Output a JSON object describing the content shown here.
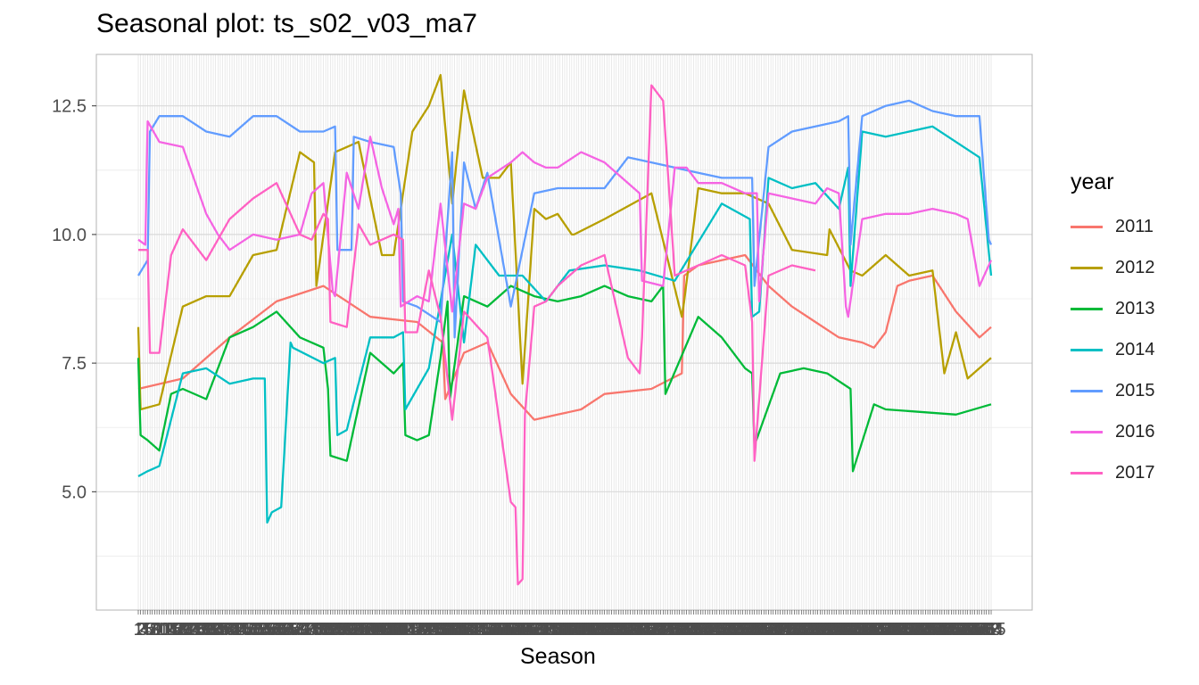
{
  "chart_data": {
    "type": "line",
    "title": "Seasonal plot: ts_s02_v03_ma7",
    "xlabel": "Season",
    "ylabel": "",
    "ylim": [
      2.7,
      13.5
    ],
    "y_ticks": [
      "5.0",
      "7.5",
      "10.0",
      "12.5"
    ],
    "y_tick_values": [
      5.0,
      7.5,
      10.0,
      12.5
    ],
    "x_range": [
      1,
      365
    ],
    "legend_title": "year",
    "legend_position": "right",
    "grid": true,
    "series": [
      {
        "name": "2011",
        "color": "#F8766D",
        "x": [
          1,
          20,
          40,
          60,
          80,
          100,
          120,
          131,
          132,
          140,
          150,
          160,
          170,
          180,
          190,
          200,
          220,
          233,
          234,
          240,
          250,
          260,
          270,
          280,
          290,
          300,
          310,
          315,
          320,
          325,
          330,
          340,
          350,
          360,
          365
        ],
        "values": [
          7.0,
          7.2,
          8.0,
          8.7,
          9.0,
          8.4,
          8.3,
          7.9,
          6.8,
          7.7,
          7.9,
          6.9,
          6.4,
          6.5,
          6.6,
          6.9,
          7.0,
          7.3,
          9.2,
          9.4,
          9.5,
          9.6,
          9.0,
          8.6,
          8.3,
          8.0,
          7.9,
          7.8,
          8.1,
          9.0,
          9.1,
          9.2,
          8.5,
          8.0,
          8.2
        ]
      },
      {
        "name": "2012",
        "color": "#B79F00",
        "x": [
          1,
          2,
          10,
          20,
          30,
          40,
          50,
          60,
          70,
          76,
          77,
          85,
          95,
          105,
          110,
          118,
          125,
          130,
          135,
          140,
          148,
          155,
          160,
          165,
          170,
          175,
          180,
          186,
          187,
          200,
          220,
          233,
          234,
          240,
          250,
          260,
          270,
          280,
          295,
          296,
          305,
          310,
          320,
          330,
          340,
          345,
          350,
          355,
          365
        ],
        "values": [
          8.2,
          6.6,
          6.7,
          8.6,
          8.8,
          8.8,
          9.6,
          9.7,
          11.6,
          11.4,
          9.0,
          11.6,
          11.8,
          9.6,
          9.6,
          12.0,
          12.5,
          13.1,
          10.6,
          12.8,
          11.1,
          11.1,
          11.4,
          7.1,
          10.5,
          10.3,
          10.4,
          10.0,
          10.0,
          10.3,
          10.8,
          8.4,
          8.7,
          10.9,
          10.8,
          10.8,
          10.6,
          9.7,
          9.6,
          10.1,
          9.3,
          9.2,
          9.6,
          9.2,
          9.3,
          7.3,
          8.1,
          7.2,
          7.6
        ]
      },
      {
        "name": "2013",
        "color": "#00BA38",
        "x": [
          1,
          2,
          5,
          10,
          15,
          20,
          30,
          40,
          50,
          60,
          70,
          80,
          82,
          83,
          90,
          100,
          110,
          114,
          115,
          120,
          125,
          130,
          133,
          134,
          140,
          150,
          160,
          170,
          180,
          190,
          200,
          210,
          220,
          225,
          226,
          240,
          250,
          260,
          263,
          264,
          275,
          285,
          295,
          305,
          306,
          315,
          320,
          350,
          365
        ],
        "values": [
          7.6,
          6.1,
          6.0,
          5.8,
          6.9,
          7.0,
          6.8,
          8.0,
          8.2,
          8.5,
          8.0,
          7.8,
          7.0,
          5.7,
          5.6,
          7.7,
          7.3,
          7.5,
          6.1,
          6.0,
          6.1,
          7.6,
          8.7,
          6.8,
          8.8,
          8.6,
          9.0,
          8.8,
          8.7,
          8.8,
          9.0,
          8.8,
          8.7,
          9.0,
          6.9,
          8.4,
          8.0,
          7.4,
          7.3,
          5.9,
          7.3,
          7.4,
          7.3,
          7.0,
          5.4,
          6.7,
          6.6,
          6.5,
          6.7
        ]
      },
      {
        "name": "2014",
        "color": "#00BFC4",
        "x": [
          1,
          5,
          10,
          20,
          30,
          40,
          50,
          55,
          56,
          58,
          62,
          66,
          67,
          80,
          85,
          86,
          90,
          100,
          110,
          114,
          115,
          125,
          135,
          140,
          145,
          155,
          165,
          175,
          185,
          200,
          215,
          230,
          250,
          262,
          263,
          266,
          270,
          280,
          290,
          300,
          304,
          305,
          310,
          320,
          340,
          360,
          365
        ],
        "values": [
          5.3,
          5.4,
          5.5,
          7.3,
          7.4,
          7.1,
          7.2,
          7.2,
          4.4,
          4.6,
          4.7,
          7.9,
          7.8,
          7.5,
          7.6,
          6.1,
          6.2,
          8.0,
          8.0,
          8.1,
          6.6,
          7.4,
          10.0,
          7.9,
          9.8,
          9.2,
          9.2,
          8.7,
          9.3,
          9.4,
          9.3,
          9.1,
          10.6,
          10.3,
          8.4,
          8.5,
          11.1,
          10.9,
          11.0,
          10.5,
          11.3,
          9.0,
          12.0,
          11.9,
          12.1,
          11.5,
          9.2
        ]
      },
      {
        "name": "2015",
        "color": "#619CFF",
        "x": [
          1,
          5,
          6,
          10,
          20,
          30,
          40,
          50,
          60,
          70,
          80,
          85,
          86,
          92,
          93,
          100,
          110,
          113,
          114,
          120,
          130,
          135,
          136,
          140,
          145,
          150,
          160,
          170,
          180,
          190,
          200,
          210,
          220,
          230,
          240,
          250,
          263,
          264,
          270,
          280,
          290,
          300,
          304,
          305,
          310,
          320,
          330,
          340,
          350,
          360,
          364,
          365
        ],
        "values": [
          9.2,
          9.5,
          12.0,
          12.3,
          12.3,
          12.0,
          11.9,
          12.3,
          12.3,
          12.0,
          12.0,
          12.1,
          9.7,
          9.7,
          11.9,
          11.8,
          11.7,
          10.8,
          8.7,
          8.6,
          8.3,
          11.6,
          8.0,
          11.4,
          10.5,
          11.2,
          8.6,
          10.8,
          10.9,
          10.9,
          10.9,
          11.5,
          11.4,
          11.3,
          11.2,
          11.1,
          11.1,
          9.0,
          11.7,
          12.0,
          12.1,
          12.2,
          12.3,
          9.8,
          12.3,
          12.5,
          12.6,
          12.4,
          12.3,
          12.3,
          9.9,
          9.8
        ]
      },
      {
        "name": "2016",
        "color": "#F564E3",
        "x": [
          1,
          4,
          5,
          10,
          20,
          30,
          35,
          40,
          50,
          60,
          70,
          75,
          80,
          84,
          85,
          90,
          95,
          100,
          105,
          110,
          112,
          113,
          120,
          125,
          130,
          135,
          140,
          145,
          150,
          160,
          165,
          170,
          175,
          180,
          190,
          200,
          210,
          215,
          216,
          225,
          230,
          235,
          240,
          250,
          260,
          265,
          266,
          270,
          280,
          290,
          295,
          300,
          303,
          304,
          310,
          320,
          330,
          340,
          350,
          355,
          360,
          365
        ],
        "values": [
          9.9,
          9.8,
          12.2,
          11.8,
          11.7,
          10.4,
          10.0,
          9.7,
          10.0,
          9.9,
          10.0,
          10.8,
          11.0,
          8.9,
          8.8,
          11.2,
          10.5,
          11.9,
          10.9,
          10.2,
          10.5,
          8.6,
          8.8,
          8.7,
          10.6,
          8.5,
          10.6,
          10.5,
          11.1,
          11.4,
          11.6,
          11.4,
          11.3,
          11.3,
          11.6,
          11.4,
          11.0,
          10.8,
          9.1,
          9.0,
          11.3,
          11.3,
          11.0,
          11.0,
          10.8,
          10.8,
          8.7,
          10.8,
          10.7,
          10.6,
          10.9,
          10.8,
          8.6,
          8.4,
          10.3,
          10.4,
          10.4,
          10.5,
          10.4,
          10.3,
          9.0,
          9.5
        ]
      },
      {
        "name": "2017",
        "color": "#FF61C3",
        "x": [
          1,
          5,
          6,
          10,
          15,
          20,
          30,
          40,
          50,
          60,
          70,
          75,
          80,
          82,
          83,
          90,
          95,
          100,
          110,
          114,
          115,
          120,
          125,
          130,
          135,
          140,
          150,
          160,
          162,
          163,
          165,
          166,
          170,
          175,
          180,
          190,
          200,
          210,
          215,
          216,
          220,
          225,
          230,
          240,
          250,
          260,
          263,
          264,
          270,
          280,
          290
        ],
        "values": [
          9.7,
          9.7,
          7.7,
          7.7,
          9.6,
          10.1,
          9.5,
          10.3,
          10.7,
          11.0,
          10.0,
          9.9,
          10.4,
          10.3,
          8.3,
          8.2,
          10.2,
          9.8,
          10.0,
          9.9,
          8.1,
          8.1,
          9.3,
          8.4,
          6.4,
          8.5,
          8.0,
          4.8,
          4.7,
          3.2,
          3.3,
          6.5,
          8.6,
          8.7,
          9.0,
          9.4,
          9.6,
          7.6,
          7.3,
          8.0,
          12.9,
          12.6,
          9.2,
          9.4,
          9.6,
          9.4,
          8.3,
          5.6,
          9.2,
          9.4,
          9.3
        ]
      }
    ]
  }
}
